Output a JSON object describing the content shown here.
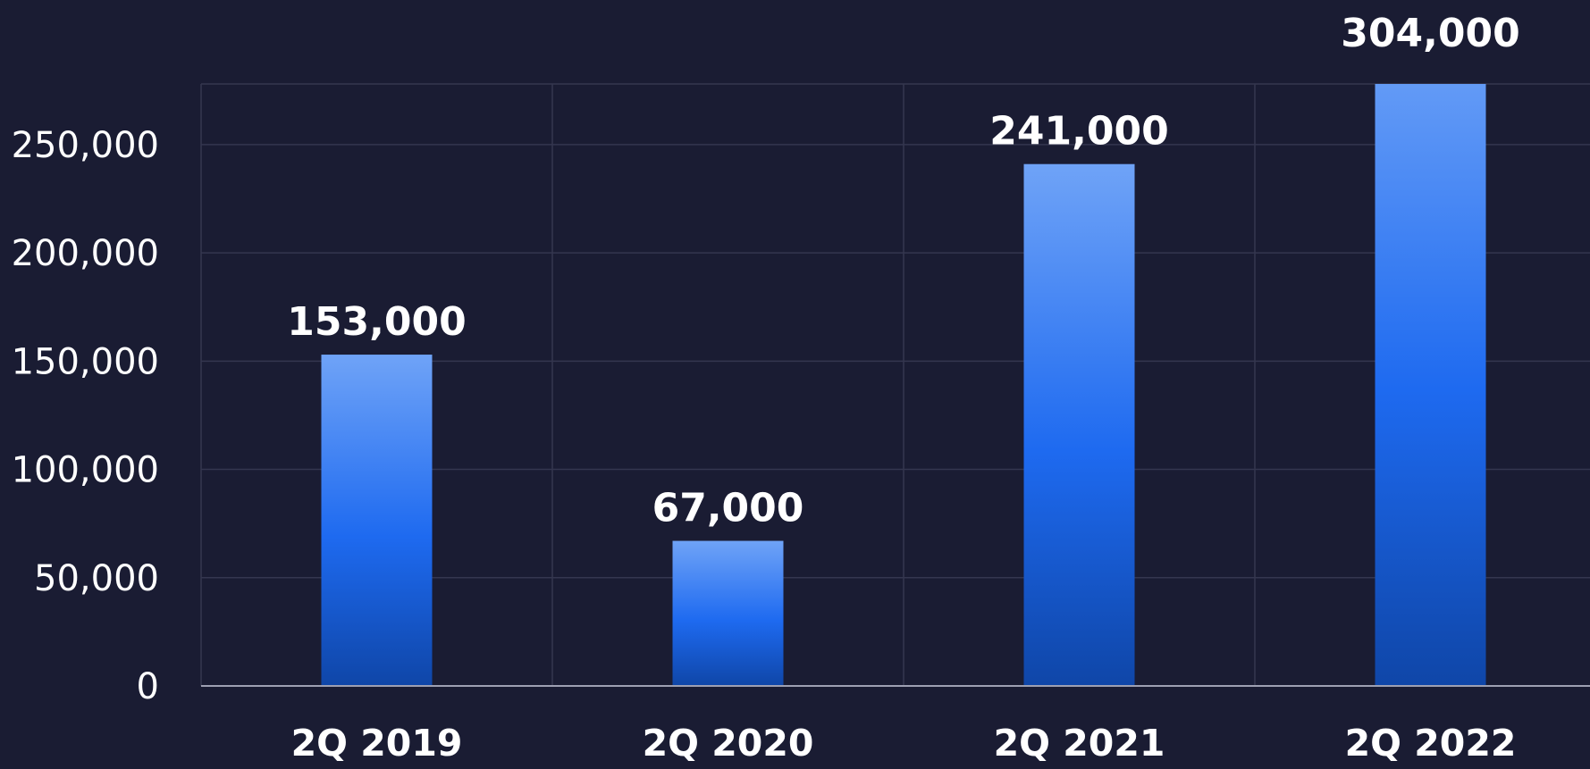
{
  "chart_data": {
    "type": "bar",
    "title": "",
    "xlabel": "",
    "ylabel": "",
    "categories": [
      "2Q 2019",
      "2Q 2020",
      "2Q 2021",
      "2Q 2022"
    ],
    "values": [
      153000,
      67000,
      241000,
      304000
    ],
    "data_labels": [
      "153,000",
      "67,000",
      "241,000",
      "304,000"
    ],
    "ylim": [
      0,
      278000
    ],
    "y_ticks": [
      0,
      50000,
      100000,
      150000,
      200000,
      250000
    ],
    "y_tick_labels": [
      "0",
      "50,000",
      "100,000",
      "150,000",
      "200,000",
      "250,000"
    ],
    "grid": true,
    "legend": "none",
    "colors": {
      "background": "#1a1c33",
      "bar_top": "#6fa3f7",
      "bar_mid": "#1e6af0",
      "bar_bottom": "#0f46a8",
      "grid": "#34364f",
      "axis": "#9ea0b2",
      "text": "#ffffff"
    }
  }
}
